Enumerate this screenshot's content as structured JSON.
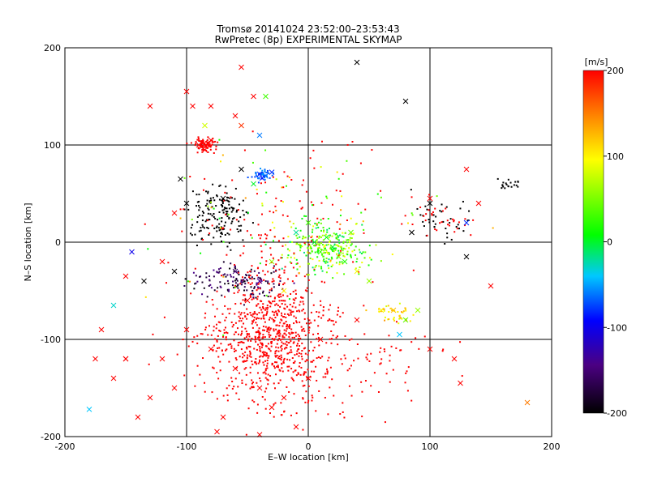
{
  "chart_data": {
    "type": "scatter",
    "title": "Tromsø 20141024 23:52:00–23:53:43",
    "subtitle": "RwPretec (8p) EXPERIMENTAL SKYMAP",
    "xlabel": "E–W location [km]",
    "ylabel": "N–S location [km]",
    "xlim": [
      -200,
      200
    ],
    "ylim": [
      -200,
      200
    ],
    "xticks": [
      -200,
      -100,
      0,
      100,
      200
    ],
    "yticks": [
      -200,
      -100,
      0,
      100,
      200
    ],
    "grid": true,
    "colorbar": {
      "label": "[m/s]",
      "range": [
        -200,
        200
      ],
      "ticks": [
        -200,
        -100,
        0,
        100,
        200
      ],
      "colors": [
        "#000000",
        "#4b0082",
        "#0000ff",
        "#00c8ff",
        "#00ff00",
        "#ffff00",
        "#ff8c00",
        "#ff0000"
      ]
    },
    "series": [
      {
        "marker": "x",
        "points": [
          [
            -90,
            100,
            200
          ],
          [
            -85,
            95,
            200
          ],
          [
            -80,
            105,
            200
          ],
          [
            -88,
            98,
            200
          ],
          [
            -82,
            102,
            200
          ],
          [
            -95,
            140,
            200
          ],
          [
            -100,
            155,
            200
          ],
          [
            -80,
            140,
            200
          ],
          [
            -60,
            130,
            200
          ],
          [
            -55,
            120,
            180
          ],
          [
            -40,
            70,
            -80
          ],
          [
            -35,
            68,
            -60
          ],
          [
            -30,
            72,
            -80
          ],
          [
            -38,
            66,
            -90
          ],
          [
            -45,
            60,
            0
          ],
          [
            -105,
            65,
            -200
          ],
          [
            -100,
            40,
            -200
          ],
          [
            -55,
            75,
            -200
          ],
          [
            -70,
            45,
            -200
          ],
          [
            40,
            185,
            -200
          ],
          [
            80,
            145,
            -200
          ],
          [
            100,
            40,
            -200
          ],
          [
            85,
            10,
            -200
          ],
          [
            130,
            -15,
            -200
          ],
          [
            -135,
            -40,
            -200
          ],
          [
            -110,
            -30,
            -200
          ],
          [
            -145,
            -10,
            -100
          ],
          [
            -160,
            -65,
            -30
          ],
          [
            10,
            -10,
            30
          ],
          [
            20,
            -5,
            0
          ],
          [
            15,
            5,
            10
          ],
          [
            25,
            -15,
            60
          ],
          [
            5,
            0,
            0
          ],
          [
            30,
            -20,
            20
          ],
          [
            40,
            -30,
            90
          ],
          [
            35,
            10,
            40
          ],
          [
            0,
            20,
            30
          ],
          [
            -10,
            10,
            -20
          ],
          [
            50,
            -40,
            60
          ],
          [
            60,
            -70,
            100
          ],
          [
            70,
            -70,
            120
          ],
          [
            80,
            -80,
            40
          ],
          [
            90,
            -70,
            60
          ],
          [
            75,
            -95,
            -40
          ],
          [
            -60,
            -30,
            -150
          ],
          [
            -40,
            -40,
            -130
          ],
          [
            -30,
            -20,
            60
          ],
          [
            -20,
            -50,
            100
          ],
          [
            -50,
            -60,
            200
          ],
          [
            -100,
            -90,
            200
          ],
          [
            -80,
            -110,
            200
          ],
          [
            -60,
            -130,
            200
          ],
          [
            -40,
            -150,
            200
          ],
          [
            -20,
            -160,
            200
          ],
          [
            0,
            -140,
            200
          ],
          [
            -120,
            -120,
            200
          ],
          [
            -130,
            -160,
            200
          ],
          [
            -150,
            -120,
            200
          ],
          [
            -170,
            -90,
            200
          ],
          [
            -180,
            -172,
            -40
          ],
          [
            -140,
            -180,
            200
          ],
          [
            -110,
            -150,
            200
          ],
          [
            -70,
            -180,
            200
          ],
          [
            -30,
            -170,
            200
          ],
          [
            -10,
            -190,
            200
          ],
          [
            -40,
            -198,
            200
          ],
          [
            -75,
            -195,
            200
          ],
          [
            10,
            -100,
            200
          ],
          [
            40,
            -80,
            200
          ],
          [
            100,
            -110,
            200
          ],
          [
            120,
            -120,
            200
          ],
          [
            125,
            -145,
            200
          ],
          [
            150,
            -45,
            200
          ],
          [
            180,
            -165,
            150
          ],
          [
            130,
            75,
            200
          ],
          [
            140,
            40,
            200
          ],
          [
            130,
            20,
            -80
          ],
          [
            100,
            45,
            200
          ],
          [
            -130,
            140,
            200
          ],
          [
            -110,
            30,
            200
          ],
          [
            -120,
            -20,
            200
          ],
          [
            -150,
            -35,
            200
          ],
          [
            -175,
            -120,
            200
          ],
          [
            -150,
            -120,
            200
          ],
          [
            -160,
            -140,
            200
          ],
          [
            -55,
            180,
            200
          ],
          [
            -45,
            150,
            200
          ],
          [
            -85,
            120,
            80
          ],
          [
            -40,
            110,
            -60
          ],
          [
            -35,
            150,
            30
          ]
        ]
      },
      {
        "marker": "dot",
        "points": []
      }
    ]
  }
}
